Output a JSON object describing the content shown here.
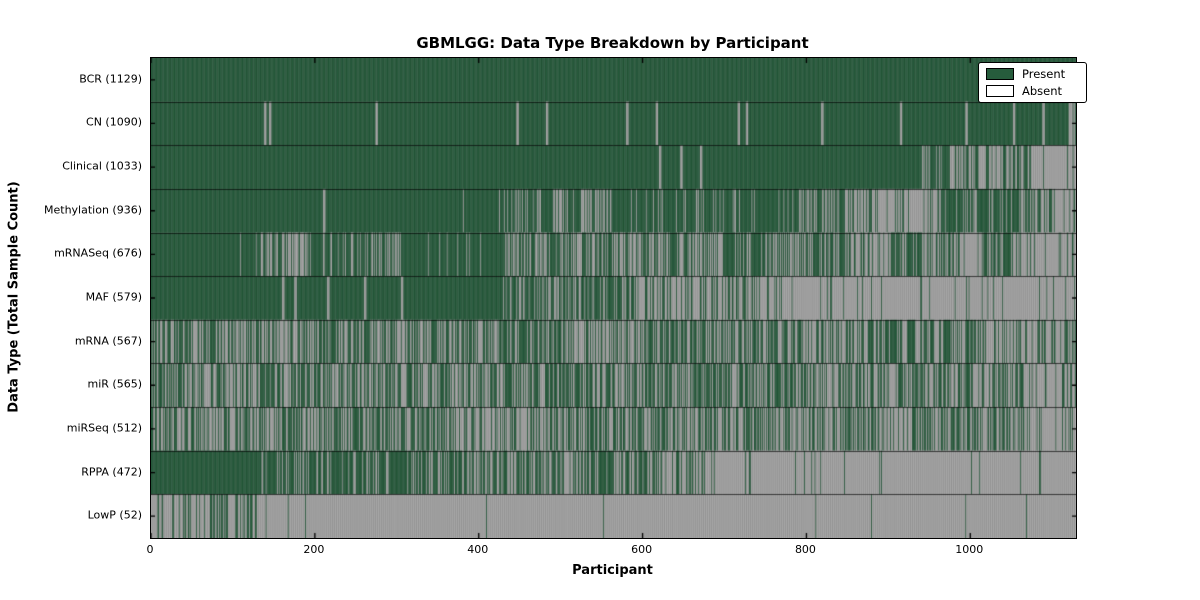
{
  "title": "GBMLGG: Data Type Breakdown by Participant",
  "legend": {
    "present_label": "Present",
    "absent_label": "Absent"
  },
  "chart_data": {
    "type": "heatmap",
    "title": "GBMLGG: Data Type Breakdown by Participant",
    "xlabel": "Participant",
    "ylabel": "Data Type (Total Sample Count)",
    "x_ticks": [
      0,
      200,
      400,
      600,
      800,
      1000
    ],
    "x_range": [
      0,
      1129
    ],
    "n_participants": 1129,
    "grid": false,
    "legend_position": "upper right",
    "legend_entries": [
      {
        "label": "Present",
        "color": "#265c3c"
      },
      {
        "label": "Absent",
        "color": "#ffffff"
      }
    ],
    "colors": {
      "present": "#265c3c",
      "absent": "#a8a8a8",
      "bar_edge": "rgba(0,0,0,0.18)",
      "row_separator": "rgba(0,0,0,0.65)",
      "axis": "#000000"
    },
    "seed": 7,
    "value_semantics": "segments are [start_participant, end_participant, fraction_present]",
    "rows": [
      {
        "label": "BCR",
        "total": 1129,
        "segments": [
          [
            0,
            1129,
            1
          ]
        ]
      },
      {
        "label": "CN",
        "total": 1090,
        "segments": [
          [
            0,
            138,
            1
          ],
          [
            138,
            141,
            0
          ],
          [
            141,
            144,
            1
          ],
          [
            144,
            147,
            0
          ],
          [
            147,
            274,
            1
          ],
          [
            274,
            277,
            0
          ],
          [
            277,
            446,
            1
          ],
          [
            446,
            449,
            0
          ],
          [
            449,
            482,
            1
          ],
          [
            482,
            485,
            0
          ],
          [
            485,
            580,
            1
          ],
          [
            580,
            583,
            0
          ],
          [
            583,
            616,
            1
          ],
          [
            616,
            619,
            0
          ],
          [
            619,
            716,
            1
          ],
          [
            716,
            719,
            0
          ],
          [
            719,
            726,
            1
          ],
          [
            726,
            729,
            0
          ],
          [
            729,
            818,
            1
          ],
          [
            818,
            821,
            0
          ],
          [
            821,
            914,
            1
          ],
          [
            914,
            917,
            0
          ],
          [
            917,
            994,
            1
          ],
          [
            994,
            997,
            0
          ],
          [
            997,
            1052,
            1
          ],
          [
            1052,
            1055,
            0
          ],
          [
            1055,
            1088,
            1
          ],
          [
            1088,
            1091,
            0
          ],
          [
            1091,
            1118,
            1
          ],
          [
            1118,
            1129,
            0.4
          ]
        ]
      },
      {
        "label": "Clinical",
        "total": 1033,
        "segments": [
          [
            0,
            620,
            1
          ],
          [
            620,
            623,
            0
          ],
          [
            623,
            646,
            1
          ],
          [
            646,
            649,
            0
          ],
          [
            649,
            670,
            1
          ],
          [
            670,
            673,
            0
          ],
          [
            673,
            940,
            1
          ],
          [
            940,
            955,
            0.3
          ],
          [
            955,
            975,
            0.85
          ],
          [
            975,
            990,
            0.2
          ],
          [
            990,
            1010,
            0.8
          ],
          [
            1010,
            1040,
            0.35
          ],
          [
            1040,
            1060,
            0.7
          ],
          [
            1060,
            1129,
            0.25
          ]
        ]
      },
      {
        "label": "Methylation",
        "total": 936,
        "segments": [
          [
            0,
            210,
            1
          ],
          [
            210,
            213,
            0
          ],
          [
            213,
            430,
            0.99
          ],
          [
            430,
            560,
            0.7
          ],
          [
            560,
            790,
            0.87
          ],
          [
            790,
            880,
            0.55
          ],
          [
            880,
            960,
            0.18
          ],
          [
            960,
            1060,
            0.8
          ],
          [
            1060,
            1100,
            0.5
          ],
          [
            1100,
            1129,
            0.3
          ]
        ]
      },
      {
        "label": "mRNASeq",
        "total": 676,
        "segments": [
          [
            0,
            107,
            1
          ],
          [
            107,
            141,
            0.7
          ],
          [
            141,
            192,
            0.35
          ],
          [
            192,
            277,
            0.75
          ],
          [
            277,
            305,
            0.5
          ],
          [
            305,
            429,
            0.9
          ],
          [
            429,
            565,
            0.55
          ],
          [
            565,
            632,
            0.35
          ],
          [
            632,
            700,
            0.5
          ],
          [
            700,
            745,
            0.75
          ],
          [
            745,
            790,
            0.4
          ],
          [
            790,
            847,
            0.6
          ],
          [
            847,
            903,
            0.3
          ],
          [
            903,
            948,
            0.65
          ],
          [
            948,
            994,
            0.45
          ],
          [
            994,
            1016,
            0.2
          ],
          [
            1016,
            1050,
            0.75
          ],
          [
            1050,
            1129,
            0.15
          ]
        ]
      },
      {
        "label": "MAF",
        "total": 579,
        "segments": [
          [
            0,
            160,
            1
          ],
          [
            160,
            163,
            0
          ],
          [
            163,
            175,
            1
          ],
          [
            175,
            178,
            0
          ],
          [
            178,
            215,
            1
          ],
          [
            215,
            218,
            0
          ],
          [
            218,
            260,
            1
          ],
          [
            260,
            263,
            0
          ],
          [
            263,
            305,
            1
          ],
          [
            305,
            308,
            0
          ],
          [
            308,
            430,
            1
          ],
          [
            430,
            475,
            0.8
          ],
          [
            475,
            530,
            0.55
          ],
          [
            530,
            590,
            0.6
          ],
          [
            590,
            635,
            0.35
          ],
          [
            635,
            700,
            0.25
          ],
          [
            700,
            745,
            0.45
          ],
          [
            745,
            790,
            0.15
          ],
          [
            790,
            1129,
            0.07
          ]
        ]
      },
      {
        "label": "mRNA",
        "total": 567,
        "segments": [
          [
            0,
            430,
            0.52
          ],
          [
            430,
            520,
            0.6
          ],
          [
            520,
            600,
            0.45
          ],
          [
            600,
            700,
            0.62
          ],
          [
            700,
            790,
            0.5
          ],
          [
            790,
            880,
            0.45
          ],
          [
            880,
            1000,
            0.55
          ],
          [
            1000,
            1070,
            0.45
          ],
          [
            1070,
            1129,
            0.25
          ]
        ]
      },
      {
        "label": "miR",
        "total": 565,
        "segments": [
          [
            0,
            430,
            0.5
          ],
          [
            430,
            530,
            0.58
          ],
          [
            530,
            610,
            0.45
          ],
          [
            610,
            710,
            0.62
          ],
          [
            710,
            800,
            0.5
          ],
          [
            800,
            890,
            0.47
          ],
          [
            890,
            1000,
            0.55
          ],
          [
            1000,
            1070,
            0.45
          ],
          [
            1070,
            1129,
            0.22
          ]
        ]
      },
      {
        "label": "miRSeq",
        "total": 512,
        "segments": [
          [
            0,
            220,
            0.48
          ],
          [
            220,
            370,
            0.58
          ],
          [
            370,
            460,
            0.35
          ],
          [
            460,
            560,
            0.45
          ],
          [
            560,
            660,
            0.5
          ],
          [
            660,
            760,
            0.45
          ],
          [
            760,
            860,
            0.4
          ],
          [
            860,
            980,
            0.52
          ],
          [
            980,
            1070,
            0.4
          ],
          [
            1070,
            1129,
            0.2
          ]
        ]
      },
      {
        "label": "RPPA",
        "total": 472,
        "segments": [
          [
            0,
            135,
            1
          ],
          [
            135,
            185,
            0.75
          ],
          [
            185,
            335,
            0.78
          ],
          [
            335,
            495,
            0.62
          ],
          [
            495,
            530,
            0.4
          ],
          [
            530,
            565,
            0.85
          ],
          [
            565,
            590,
            0.3
          ],
          [
            590,
            620,
            0.8
          ],
          [
            620,
            680,
            0.35
          ],
          [
            680,
            1129,
            0.05
          ]
        ]
      },
      {
        "label": "LowP",
        "total": 52,
        "segments": [
          [
            0,
            130,
            0.33
          ],
          [
            130,
            430,
            0.02
          ],
          [
            430,
            1129,
            0.003
          ]
        ]
      }
    ]
  }
}
